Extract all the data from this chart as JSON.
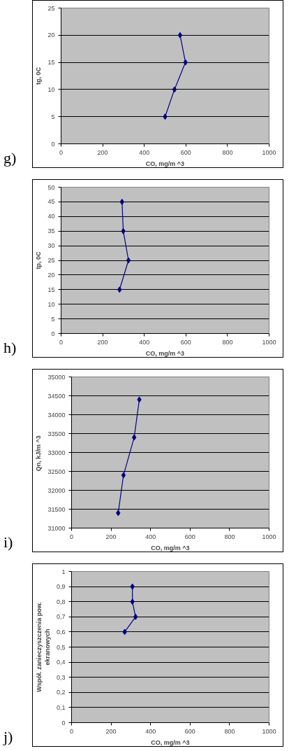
{
  "chart_data": [
    {
      "type": "line",
      "xlabel": "CO, mg/m ^3",
      "ylabel": "tg, 0C",
      "annotations": [
        "g)"
      ],
      "marker": "diamond",
      "grid": "y",
      "xlim": [
        0,
        1000
      ],
      "xticks": [
        0,
        200,
        400,
        600,
        800,
        1000
      ],
      "ylim": [
        0,
        25
      ],
      "yticks": [
        0,
        5,
        10,
        15,
        20,
        25
      ],
      "series": [
        {
          "color": "#000080",
          "x": [
            500,
            545,
            598,
            572
          ],
          "values": [
            5,
            10,
            15,
            20
          ]
        }
      ]
    },
    {
      "type": "line",
      "xlabel": "CO, mg/m ^3",
      "ylabel": "tp, 0C",
      "annotations": [
        "h)"
      ],
      "marker": "diamond",
      "grid": "y",
      "xlim": [
        0,
        1000
      ],
      "xticks": [
        0,
        200,
        400,
        600,
        800,
        1000
      ],
      "ylim": [
        0,
        50
      ],
      "yticks": [
        0,
        5,
        10,
        15,
        20,
        25,
        30,
        35,
        40,
        45,
        50
      ],
      "series": [
        {
          "color": "#000080",
          "x": [
            281,
            324,
            299,
            293
          ],
          "values": [
            15,
            25,
            35,
            45
          ]
        }
      ]
    },
    {
      "type": "line",
      "xlabel": "CO, mg/m ^3",
      "ylabel": "Qn,  kJ/m ^3",
      "annotations": [
        "i)"
      ],
      "marker": "diamond",
      "grid": "y",
      "xlim": [
        0,
        1000
      ],
      "xticks": [
        0,
        200,
        400,
        600,
        800,
        1000
      ],
      "ylim": [
        31000,
        35000
      ],
      "yticks": [
        31000,
        31500,
        32000,
        32500,
        33000,
        33500,
        34000,
        34500,
        35000
      ],
      "series": [
        {
          "color": "#000080",
          "x": [
            236,
            263,
            317,
            343
          ],
          "values": [
            31400,
            32400,
            33400,
            34400
          ]
        }
      ]
    },
    {
      "type": "line",
      "xlabel": "CO, mg/m ^3",
      "ylabel": "Współ. zanieczyszczenia pow. ekranowych",
      "annotations": [
        "j)"
      ],
      "marker": "diamond",
      "grid": "y",
      "xlim": [
        0,
        1000
      ],
      "xticks": [
        0,
        200,
        400,
        600,
        800,
        1000
      ],
      "ylim": [
        0,
        1
      ],
      "yticks": [
        0,
        {
          "value": 0.1,
          "label": "0,1"
        },
        {
          "value": 0.2,
          "label": "0,2"
        },
        {
          "value": 0.3,
          "label": "0,3"
        },
        {
          "value": 0.4,
          "label": "0,4"
        },
        {
          "value": 0.5,
          "label": "0,5"
        },
        {
          "value": 0.6,
          "label": "0,6"
        },
        {
          "value": 0.7,
          "label": "0,7"
        },
        {
          "value": 0.8,
          "label": "0,8"
        },
        {
          "value": 0.9,
          "label": "0,9"
        },
        1
      ],
      "series": [
        {
          "color": "#000080",
          "x": [
            269,
            324,
            308,
            308
          ],
          "values": [
            0.6,
            0.7,
            0.8,
            0.9
          ]
        }
      ]
    }
  ]
}
